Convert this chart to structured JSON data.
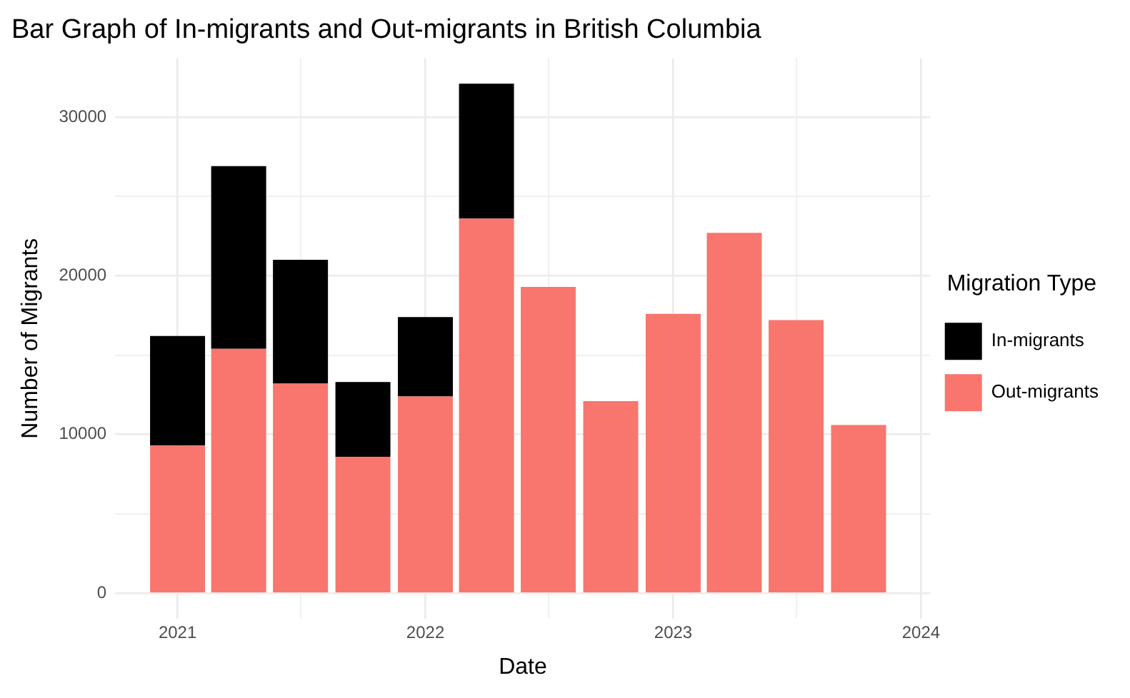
{
  "chart_data": {
    "type": "bar",
    "stacked": true,
    "title": "Bar Graph of In-migrants and Out-migrants in British Columbia",
    "xlabel": "Date",
    "ylabel": "Number of Migrants",
    "legend_title": "Migration Type",
    "legend": "right",
    "grid": true,
    "x": [
      "2021-01-01",
      "2021-04-01",
      "2021-07-01",
      "2021-10-01",
      "2022-01-01",
      "2022-04-01",
      "2022-07-01",
      "2022-10-01",
      "2023-01-01",
      "2023-04-01",
      "2023-07-01",
      "2023-10-01"
    ],
    "series": [
      {
        "name": "Out-migrants",
        "color": "#f8766d",
        "values": [
          9300,
          15400,
          13200,
          8600,
          12400,
          23600,
          19300,
          12100,
          17600,
          22700,
          17200,
          10600
        ]
      },
      {
        "name": "In-migrants",
        "color": "#000000",
        "values": [
          6900,
          11500,
          7800,
          4700,
          5000,
          8500,
          null,
          null,
          null,
          null,
          null,
          null
        ]
      }
    ],
    "xlim": [
      "2020-10-01",
      "2024-01-15"
    ],
    "xticks": [
      "2021",
      {
        "value": "2021-07",
        "label": null
      },
      "2022",
      {
        "value": "2022-07",
        "label": null
      },
      "2023",
      {
        "value": "2023-07",
        "label": null
      },
      "2024"
    ],
    "ylim": [
      -1600,
      33700
    ],
    "yticks": [
      0,
      {
        "value": 5000,
        "label": null
      },
      10000,
      {
        "value": 15000,
        "label": null
      },
      20000,
      {
        "value": 25000,
        "label": null
      },
      30000
    ]
  }
}
